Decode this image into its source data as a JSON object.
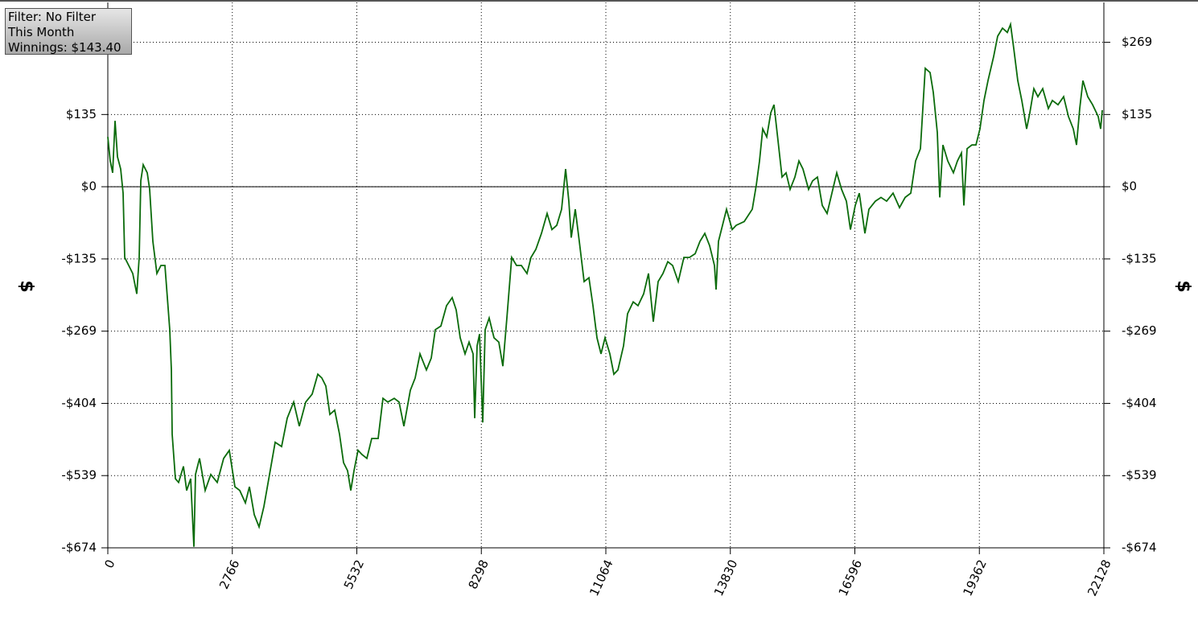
{
  "chart_data": {
    "type": "line",
    "y_label": "$",
    "annotations": [
      "Filter: No Filter",
      "This Month",
      "Winnings: $143.40"
    ],
    "color": "#0b6b0b",
    "grid": true,
    "zero_line": true,
    "xlim": [
      0,
      22128
    ],
    "xticks": [
      0,
      2766,
      5532,
      8298,
      11064,
      13830,
      16596,
      19362,
      22128
    ],
    "ylim": [
      -674,
      344
    ],
    "yticks": [
      {
        "value": -674,
        "label": "-$674"
      },
      {
        "value": -539.2,
        "label": "-$539"
      },
      {
        "value": -404.4,
        "label": "-$404"
      },
      {
        "value": -269.6,
        "label": "-$269"
      },
      {
        "value": -134.8,
        "label": "-$135"
      },
      {
        "value": 0,
        "label": "$0"
      },
      {
        "value": 134.8,
        "label": "$135"
      },
      {
        "value": 269.6,
        "label": "$269"
      }
    ],
    "x": [
      0,
      54,
      107,
      161,
      214,
      286,
      340,
      375,
      465,
      554,
      643,
      697,
      733,
      786,
      876,
      929,
      1001,
      1090,
      1180,
      1269,
      1323,
      1376,
      1412,
      1430,
      1501,
      1573,
      1680,
      1752,
      1841,
      1913,
      1948,
      2038,
      2163,
      2288,
      2431,
      2574,
      2699,
      2824,
      2931,
      3056,
      3146,
      3253,
      3360,
      3468,
      3593,
      3718,
      3861,
      3986,
      4129,
      4254,
      4397,
      4540,
      4665,
      4754,
      4844,
      4933,
      5040,
      5148,
      5237,
      5326,
      5398,
      5469,
      5559,
      5648,
      5755,
      5863,
      6006,
      6113,
      6220,
      6363,
      6470,
      6578,
      6721,
      6828,
      6935,
      7078,
      7185,
      7275,
      7400,
      7525,
      7650,
      7739,
      7829,
      7936,
      8025,
      8115,
      8150,
      8204,
      8258,
      8329,
      8383,
      8472,
      8580,
      8687,
      8776,
      8865,
      8973,
      9080,
      9187,
      9312,
      9402,
      9509,
      9634,
      9759,
      9866,
      9974,
      10081,
      10170,
      10242,
      10295,
      10385,
      10474,
      10581,
      10689,
      10778,
      10867,
      10957,
      11046,
      11153,
      11243,
      11332,
      11457,
      11547,
      11672,
      11779,
      11904,
      12011,
      12119,
      12226,
      12333,
      12440,
      12547,
      12673,
      12798,
      12923,
      13048,
      13155,
      13263,
      13370,
      13477,
      13513,
      13566,
      13656,
      13745,
      13870,
      13960,
      14139,
      14317,
      14407,
      14478,
      14549,
      14639,
      14728,
      14800,
      14889,
      14978,
      15068,
      15157,
      15264,
      15354,
      15443,
      15568,
      15658,
      15765,
      15872,
      15979,
      16087,
      16194,
      16301,
      16408,
      16498,
      16605,
      16694,
      16820,
      16909,
      17052,
      17177,
      17302,
      17445,
      17588,
      17713,
      17838,
      17945,
      18053,
      18160,
      18267,
      18339,
      18428,
      18482,
      18553,
      18660,
      18786,
      18875,
      18965,
      19018,
      19090,
      19197,
      19286,
      19376,
      19465,
      19554,
      19679,
      19768,
      19876,
      19983,
      20055,
      20126,
      20215,
      20305,
      20412,
      20484,
      20573,
      20662,
      20769,
      20895,
      20984,
      21109,
      21234,
      21342,
      21449,
      21520,
      21592,
      21663,
      21770,
      21878,
      22003,
      22057,
      22092
    ],
    "values": [
      93,
      48,
      26,
      123,
      56,
      33,
      -12,
      -132,
      -147,
      -162,
      -200,
      -132,
      11,
      41,
      26,
      -5,
      -102,
      -162,
      -147,
      -147,
      -207,
      -267,
      -342,
      -462,
      -545,
      -552,
      -522,
      -567,
      -545,
      -672,
      -537,
      -507,
      -567,
      -537,
      -552,
      -507,
      -492,
      -560,
      -567,
      -590,
      -560,
      -612,
      -635,
      -597,
      -537,
      -477,
      -485,
      -432,
      -402,
      -447,
      -402,
      -387,
      -350,
      -357,
      -372,
      -425,
      -417,
      -462,
      -515,
      -530,
      -567,
      -530,
      -492,
      -500,
      -507,
      -470,
      -470,
      -395,
      -402,
      -395,
      -402,
      -447,
      -380,
      -357,
      -312,
      -342,
      -320,
      -267,
      -260,
      -222,
      -207,
      -230,
      -282,
      -312,
      -290,
      -312,
      -432,
      -297,
      -275,
      -440,
      -267,
      -245,
      -282,
      -290,
      -335,
      -245,
      -132,
      -147,
      -147,
      -162,
      -132,
      -117,
      -87,
      -50,
      -80,
      -72,
      -42,
      33,
      -27,
      -95,
      -42,
      -102,
      -177,
      -170,
      -222,
      -282,
      -312,
      -282,
      -312,
      -350,
      -342,
      -297,
      -237,
      -215,
      -222,
      -200,
      -162,
      -252,
      -177,
      -162,
      -140,
      -147,
      -177,
      -132,
      -132,
      -125,
      -102,
      -87,
      -110,
      -147,
      -192,
      -102,
      -72,
      -42,
      -80,
      -72,
      -65,
      -42,
      3,
      48,
      108,
      93,
      138,
      153,
      86,
      18,
      26,
      -5,
      18,
      48,
      33,
      -5,
      11,
      18,
      -35,
      -50,
      -12,
      26,
      -5,
      -27,
      -80,
      -35,
      -12,
      -87,
      -42,
      -27,
      -20,
      -27,
      -12,
      -39,
      -20,
      -12,
      48,
      71,
      221,
      213,
      176,
      101,
      -20,
      78,
      48,
      26,
      48,
      63,
      -35,
      71,
      78,
      78,
      108,
      161,
      198,
      243,
      281,
      296,
      288,
      303,
      258,
      198,
      161,
      108,
      138,
      183,
      168,
      183,
      146,
      161,
      153,
      168,
      131,
      108,
      78,
      146,
      198,
      168,
      153,
      131,
      108,
      143
    ]
  }
}
